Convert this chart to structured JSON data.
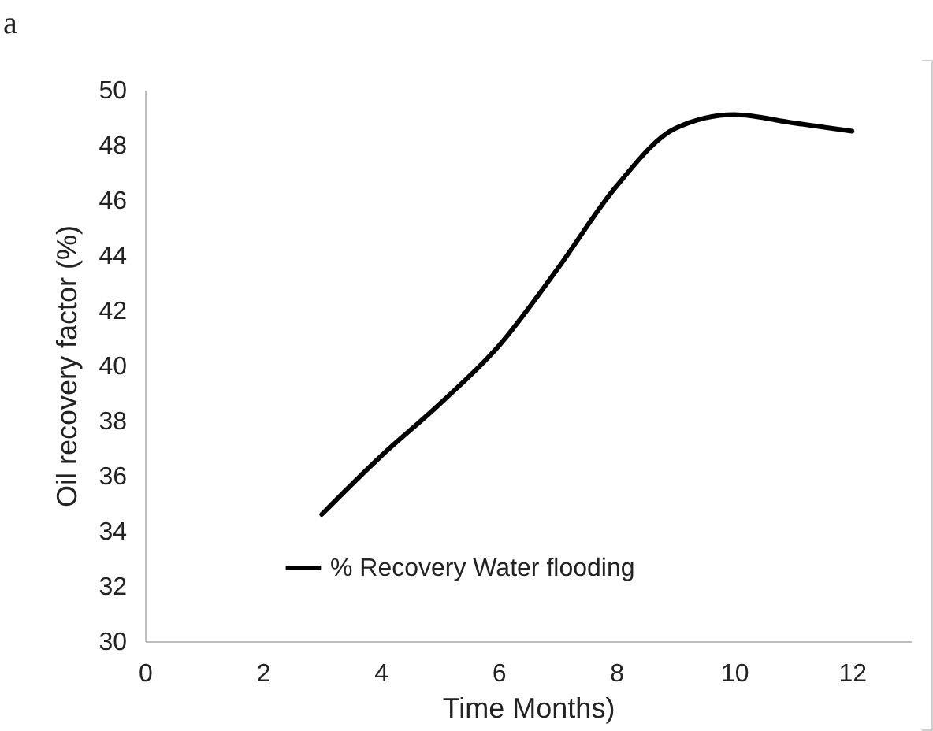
{
  "chart_data": {
    "type": "line",
    "title": "a",
    "xlabel": "Time Months)",
    "ylabel": "Oil recovery factor (%)",
    "x": [
      3,
      4,
      5,
      6,
      7,
      8,
      9,
      10,
      11,
      12
    ],
    "series": [
      {
        "name": "% Recovery Water flooding",
        "color": "#000000",
        "values": [
          34.6,
          36.7,
          38.6,
          40.7,
          43.5,
          46.5,
          48.6,
          49.1,
          48.8,
          48.5
        ]
      }
    ],
    "xlim": [
      0,
      13
    ],
    "xticks": [
      0,
      2,
      4,
      6,
      8,
      10,
      12
    ],
    "ylim": [
      30,
      50
    ],
    "yticks": [
      30,
      32,
      34,
      36,
      38,
      40,
      42,
      44,
      46,
      48,
      50
    ],
    "legend": "bottom",
    "marker": "none",
    "line_style": "solid"
  }
}
